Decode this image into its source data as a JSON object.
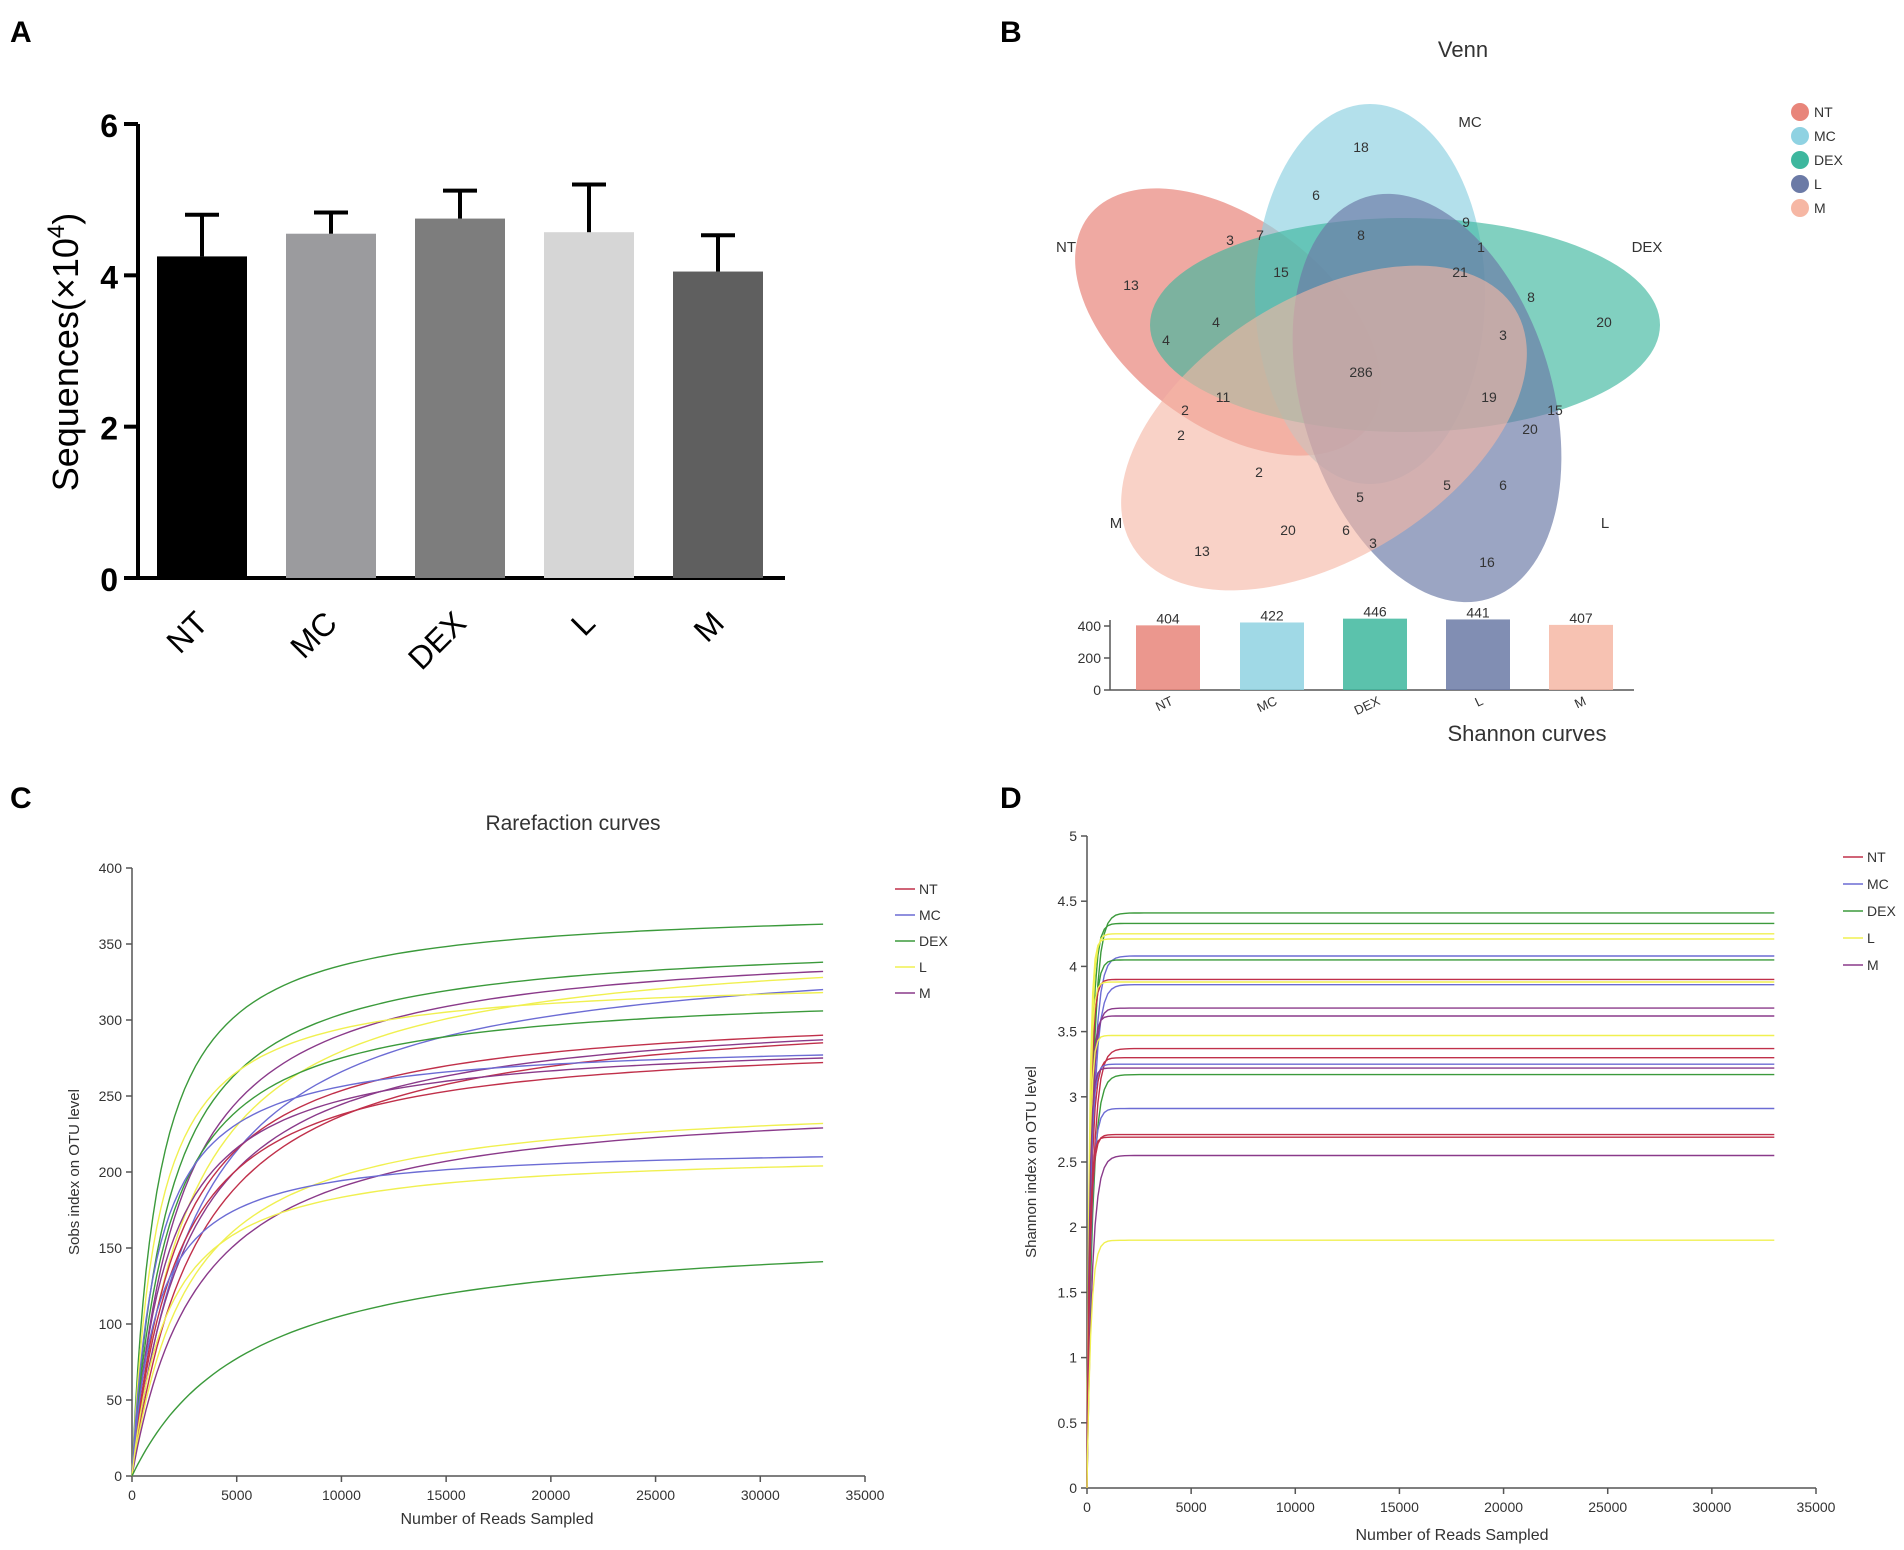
{
  "panels": {
    "a": "A",
    "b": "B",
    "c": "C",
    "d": "D"
  },
  "chart_data": [
    {
      "panel": "A",
      "type": "bar",
      "title": "",
      "xlabel": "",
      "ylabel": "Sequences(×10",
      "ylabel_sup": "4",
      "ylabel_close": ")",
      "categories": [
        "NT",
        "MC",
        "DEX",
        "L",
        "M"
      ],
      "values": [
        4.25,
        4.55,
        4.75,
        4.57,
        4.05
      ],
      "errors": [
        0.55,
        0.28,
        0.37,
        0.63,
        0.48
      ],
      "colors": [
        "#000000",
        "#9b9b9e",
        "#7d7d7d",
        "#d6d6d6",
        "#5f5f5f"
      ],
      "ylim": [
        0,
        6
      ],
      "yticks": [
        "0",
        "2",
        "4",
        "6"
      ]
    },
    {
      "panel": "B",
      "type": "venn",
      "title": "Venn",
      "sets": [
        "NT",
        "MC",
        "DEX",
        "L",
        "M"
      ],
      "colors": [
        "#e8857a",
        "#8fd2e2",
        "#3eb79e",
        "#6b7aa6",
        "#f6b7a4"
      ],
      "legend": [
        "NT",
        "MC",
        "DEX",
        "L",
        "M"
      ],
      "region_counts": [
        "18",
        "6",
        "3",
        "7",
        "8",
        "9",
        "1",
        "13",
        "15",
        "21",
        "8",
        "20",
        "4",
        "4",
        "3",
        "286",
        "11",
        "19",
        "15",
        "2",
        "2",
        "20",
        "2",
        "5",
        "5",
        "6",
        "20",
        "6",
        "3",
        "13",
        "16"
      ],
      "totals": {
        "categories": [
          "NT",
          "MC",
          "DEX",
          "L",
          "M"
        ],
        "values": [
          404,
          422,
          446,
          441,
          407
        ],
        "yticks": [
          "0",
          "200",
          "400"
        ],
        "ylim": [
          0,
          450
        ]
      },
      "caption": "Shannon curves"
    },
    {
      "panel": "C",
      "type": "line",
      "title": "Rarefaction curves",
      "xlabel": "Number of Reads Sampled",
      "ylabel": "Sobs index on OTU level",
      "xlim": [
        0,
        35000
      ],
      "ylim": [
        0,
        400
      ],
      "xticks": [
        "0",
        "5000",
        "10000",
        "15000",
        "20000",
        "25000",
        "30000",
        "35000"
      ],
      "yticks": [
        "0",
        "50",
        "100",
        "150",
        "200",
        "250",
        "300",
        "350",
        "400"
      ],
      "legend": [
        "NT",
        "MC",
        "DEX",
        "L",
        "M"
      ],
      "legend_colors": [
        "#c0304a",
        "#6c6cd4",
        "#3b9a3b",
        "#f0f050",
        "#8a3a8a"
      ],
      "series": [
        {
          "name": "DEX",
          "color": "#3b9a3b",
          "final": 363
        },
        {
          "name": "DEX",
          "color": "#3b9a3b",
          "final": 338
        },
        {
          "name": "M",
          "color": "#8a3a8a",
          "final": 332
        },
        {
          "name": "L",
          "color": "#f0f050",
          "final": 328
        },
        {
          "name": "MC",
          "color": "#6c6cd4",
          "final": 320
        },
        {
          "name": "L",
          "color": "#f0f050",
          "final": 318
        },
        {
          "name": "DEX",
          "color": "#3b9a3b",
          "final": 306
        },
        {
          "name": "NT",
          "color": "#c0304a",
          "final": 290
        },
        {
          "name": "M",
          "color": "#8a3a8a",
          "final": 287
        },
        {
          "name": "NT",
          "color": "#c0304a",
          "final": 285
        },
        {
          "name": "MC",
          "color": "#6c6cd4",
          "final": 277
        },
        {
          "name": "M",
          "color": "#8a3a8a",
          "final": 275
        },
        {
          "name": "NT",
          "color": "#c0304a",
          "final": 272
        },
        {
          "name": "L",
          "color": "#f0f050",
          "final": 232
        },
        {
          "name": "M",
          "color": "#8a3a8a",
          "final": 229
        },
        {
          "name": "MC",
          "color": "#6c6cd4",
          "final": 210
        },
        {
          "name": "L",
          "color": "#f0f050",
          "final": 204
        },
        {
          "name": "DEX",
          "color": "#3b9a3b",
          "final": 141
        }
      ]
    },
    {
      "panel": "D",
      "type": "line",
      "title": "",
      "xlabel": "Number of Reads Sampled",
      "ylabel": "Shannon index on OTU level",
      "xlim": [
        0,
        35000
      ],
      "ylim": [
        0,
        5
      ],
      "xticks": [
        "0",
        "5000",
        "10000",
        "15000",
        "20000",
        "25000",
        "30000",
        "35000"
      ],
      "yticks": [
        "0",
        "0.5",
        "1",
        "1.5",
        "2",
        "2.5",
        "3",
        "3.5",
        "4",
        "4.5",
        "5"
      ],
      "legend": [
        "NT",
        "MC",
        "DEX",
        "L",
        "M"
      ],
      "legend_colors": [
        "#c0304a",
        "#6c6cd4",
        "#3b9a3b",
        "#f0f050",
        "#8a3a8a"
      ],
      "series": [
        {
          "name": "DEX",
          "color": "#3b9a3b",
          "final": 4.41
        },
        {
          "name": "DEX",
          "color": "#3b9a3b",
          "final": 4.33
        },
        {
          "name": "L",
          "color": "#f0f050",
          "final": 4.25
        },
        {
          "name": "L",
          "color": "#f0f050",
          "final": 4.21
        },
        {
          "name": "MC",
          "color": "#6c6cd4",
          "final": 4.08
        },
        {
          "name": "DEX",
          "color": "#3b9a3b",
          "final": 4.05
        },
        {
          "name": "NT",
          "color": "#c0304a",
          "final": 3.9
        },
        {
          "name": "L",
          "color": "#f0f050",
          "final": 3.88
        },
        {
          "name": "MC",
          "color": "#6c6cd4",
          "final": 3.86
        },
        {
          "name": "M",
          "color": "#8a3a8a",
          "final": 3.68
        },
        {
          "name": "M",
          "color": "#8a3a8a",
          "final": 3.62
        },
        {
          "name": "L",
          "color": "#f0f050",
          "final": 3.47
        },
        {
          "name": "NT",
          "color": "#c0304a",
          "final": 3.37
        },
        {
          "name": "NT",
          "color": "#c0304a",
          "final": 3.3
        },
        {
          "name": "MC",
          "color": "#6c6cd4",
          "final": 3.25
        },
        {
          "name": "M",
          "color": "#8a3a8a",
          "final": 3.22
        },
        {
          "name": "DEX",
          "color": "#3b9a3b",
          "final": 3.17
        },
        {
          "name": "MC",
          "color": "#6c6cd4",
          "final": 2.91
        },
        {
          "name": "NT",
          "color": "#c0304a",
          "final": 2.71
        },
        {
          "name": "NT",
          "color": "#c0304a",
          "final": 2.69
        },
        {
          "name": "M",
          "color": "#8a3a8a",
          "final": 2.55
        },
        {
          "name": "L",
          "color": "#f0f050",
          "final": 1.9
        }
      ]
    }
  ]
}
